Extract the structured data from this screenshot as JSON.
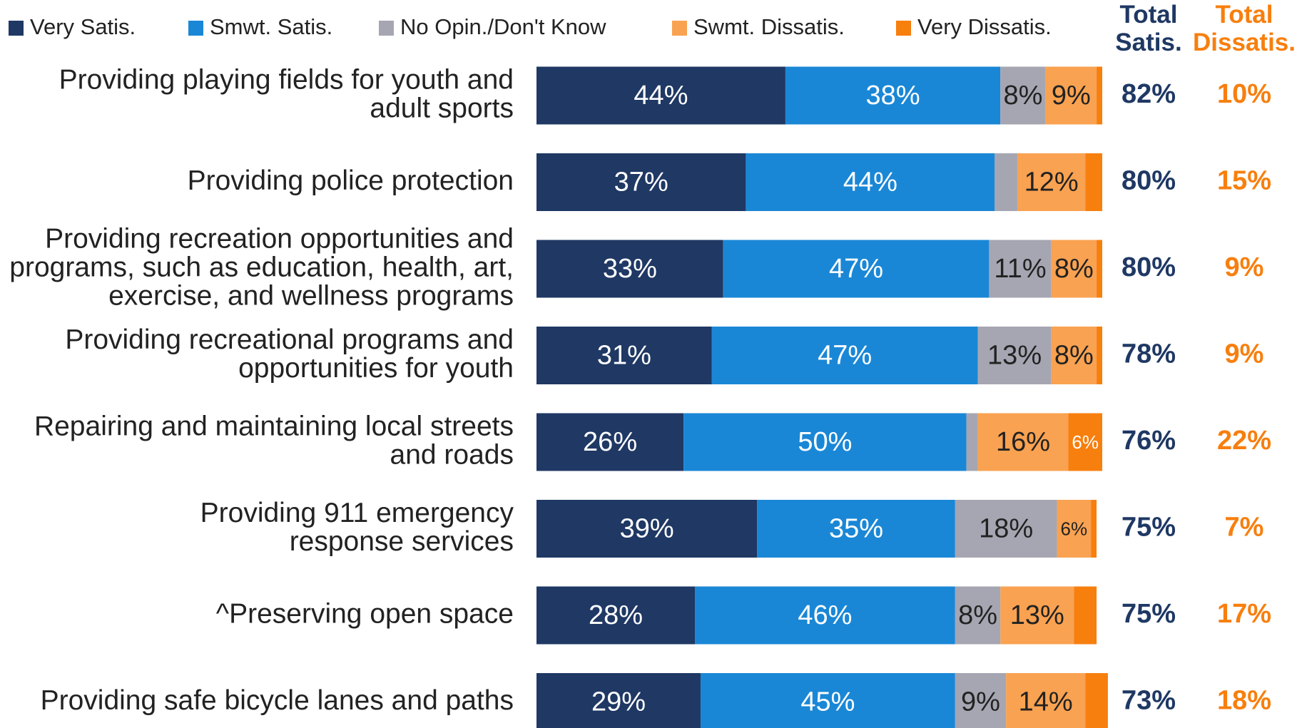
{
  "chart_data": {
    "type": "stacked-bar-horizontal",
    "categories": [
      [
        "Providing playing fields for youth and",
        "adult sports"
      ],
      [
        "Providing police protection"
      ],
      [
        "Providing recreation opportunities and",
        "programs, such as education, health, art,",
        "exercise, and wellness programs"
      ],
      [
        "Providing recreational programs and",
        "opportunities for youth"
      ],
      [
        "Repairing and maintaining local streets",
        "and roads"
      ],
      [
        "Providing 911 emergency",
        "response services"
      ],
      [
        "^Preserving open space"
      ],
      [
        "Providing safe bicycle lanes and paths"
      ]
    ],
    "xlim": [
      0,
      100
    ],
    "series": [
      {
        "name": "Very Satis.",
        "color": "#1f3864",
        "values": [
          44,
          37,
          33,
          31,
          26,
          39,
          28,
          29
        ],
        "value_labels": [
          "44%",
          "37%",
          "33%",
          "31%",
          "26%",
          "39%",
          "28%",
          "29%"
        ]
      },
      {
        "name": "Smwt. Satis.",
        "color": "#1a87d6",
        "values": [
          38,
          44,
          47,
          47,
          50,
          35,
          46,
          45
        ],
        "value_labels": [
          "38%",
          "44%",
          "47%",
          "47%",
          "50%",
          "35%",
          "46%",
          "45%"
        ]
      },
      {
        "name": "No Opin./Don't Know",
        "color": "#a6a6b2",
        "values": [
          8,
          4,
          11,
          13,
          2,
          18,
          8,
          9
        ],
        "value_labels": [
          "8%",
          null,
          "11%",
          "13%",
          null,
          "18%",
          "8%",
          "9%"
        ]
      },
      {
        "name": "Swmt. Dissatis.",
        "color": "#f9a251",
        "values": [
          9,
          12,
          8,
          8,
          16,
          6,
          13,
          14
        ],
        "value_labels": [
          "9%",
          "12%",
          "8%",
          "8%",
          "16%",
          "6%",
          "13%",
          "14%"
        ]
      },
      {
        "name": "Very Dissatis.",
        "color": "#f77f0e",
        "values": [
          1,
          3,
          1,
          1,
          6,
          1,
          4,
          4
        ],
        "value_labels": [
          null,
          null,
          null,
          null,
          "6%",
          null,
          null,
          null
        ]
      }
    ],
    "totals": [
      {
        "name": "Total Satis.",
        "color": "#1f3864",
        "values": [
          82,
          80,
          80,
          78,
          76,
          75,
          75,
          73
        ],
        "value_labels": [
          "82%",
          "80%",
          "80%",
          "78%",
          "76%",
          "75%",
          "75%",
          "73%"
        ]
      },
      {
        "name": "Total Dissatis.",
        "color": "#f77f0e",
        "values": [
          10,
          15,
          9,
          9,
          22,
          7,
          17,
          18
        ],
        "value_labels": [
          "10%",
          "15%",
          "9%",
          "9%",
          "22%",
          "7%",
          "17%",
          "18%"
        ]
      }
    ]
  }
}
